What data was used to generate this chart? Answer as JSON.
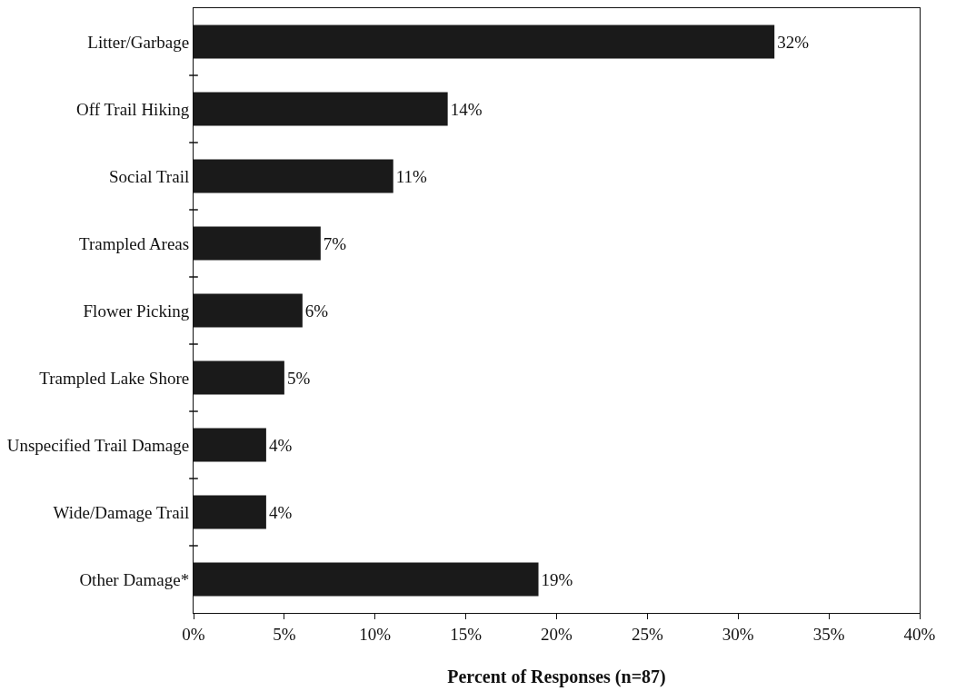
{
  "chart_data": {
    "type": "bar",
    "orientation": "horizontal",
    "xlabel": "Percent of Responses (n=87)",
    "categories": [
      "Litter/Garbage",
      "Off Trail Hiking",
      "Social Trail",
      "Trampled Areas",
      "Flower Picking",
      "Trampled Lake Shore",
      "Unspecified Trail Damage",
      "Wide/Damage Trail",
      "Other Damage*"
    ],
    "values": [
      32,
      14,
      11,
      7,
      6,
      5,
      4,
      4,
      19
    ],
    "value_labels": [
      "32%",
      "14%",
      "11%",
      "7%",
      "6%",
      "5%",
      "4%",
      "4%",
      "19%"
    ],
    "color": "#1a1a1a",
    "xlim": [
      0,
      40
    ],
    "xticks": [
      {
        "value": 0,
        "label": "0%"
      },
      {
        "value": 5,
        "label": "5%"
      },
      {
        "value": 10,
        "label": "10%"
      },
      {
        "value": 15,
        "label": "15%"
      },
      {
        "value": 20,
        "label": "20%"
      },
      {
        "value": 25,
        "label": "25%"
      },
      {
        "value": 30,
        "label": "30%"
      },
      {
        "value": 35,
        "label": "35%"
      },
      {
        "value": 40,
        "label": "40%"
      }
    ],
    "grid": false
  }
}
